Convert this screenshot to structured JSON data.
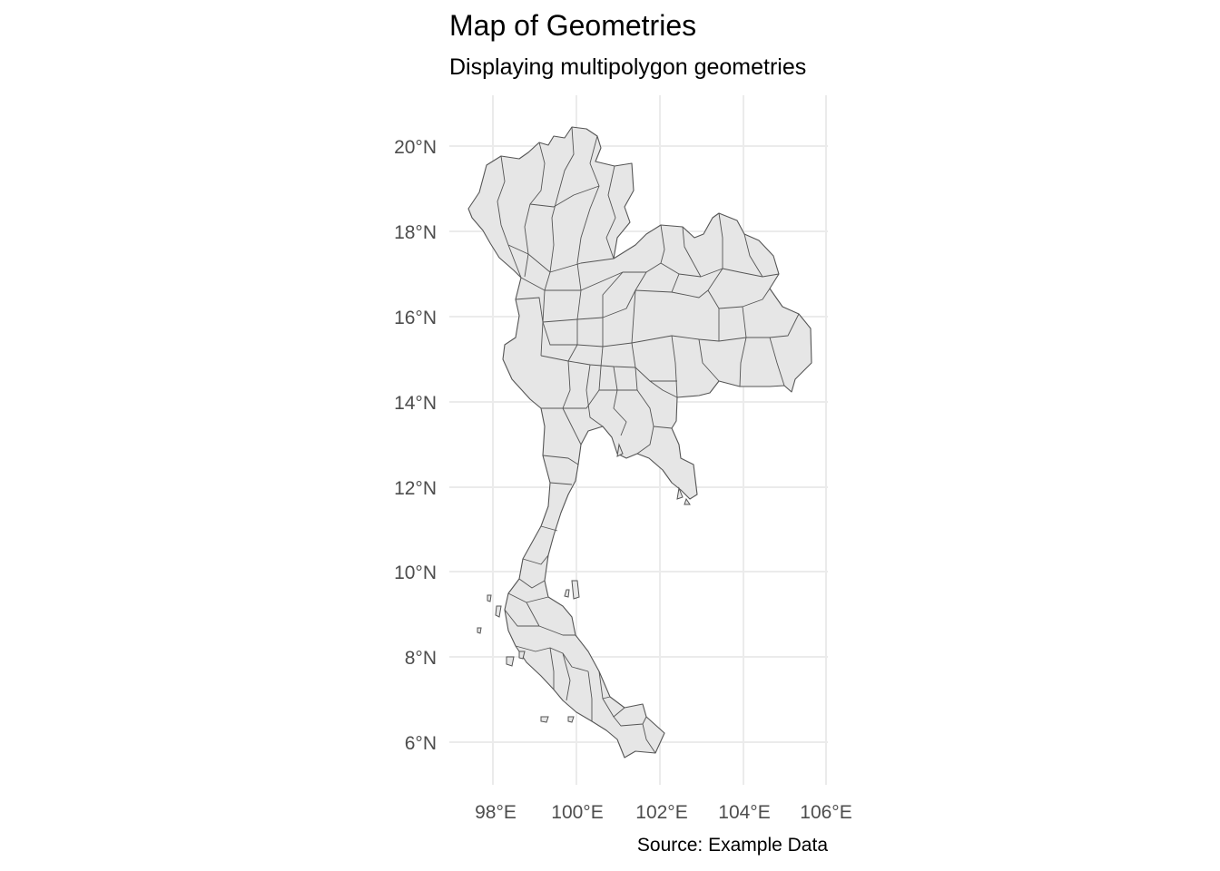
{
  "title": "Map of Geometries",
  "subtitle": "Displaying multipolygon geometries",
  "caption": "Source: Example Data",
  "colors": {
    "fill": "#e6e6e6",
    "border": "#555555",
    "grid": "#ebebeb",
    "tick_text": "#4d4d4d"
  },
  "chart_data": {
    "type": "map",
    "geometry": "multipolygon",
    "x_ticks": [
      "98°E",
      "100°E",
      "102°E",
      "104°E",
      "106°E"
    ],
    "y_ticks": [
      "20°N",
      "18°N",
      "16°N",
      "14°N",
      "12°N",
      "10°N",
      "8°N",
      "6°N"
    ],
    "xlim": [
      97.0,
      106.0
    ],
    "ylim": [
      5.0,
      21.0
    ],
    "grid": true,
    "legend": "none"
  }
}
